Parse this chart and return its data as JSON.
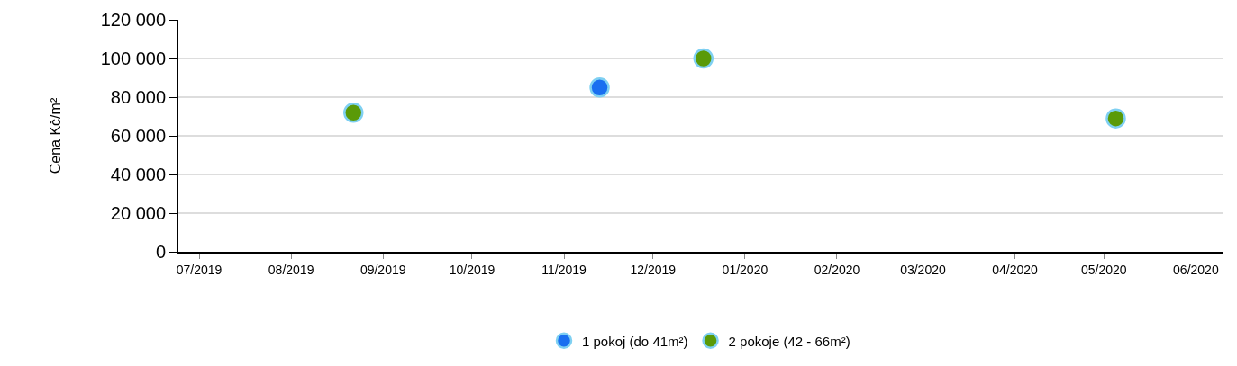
{
  "chart_data": {
    "type": "scatter",
    "ylabel": "Cena Kč/m²",
    "series": [
      {
        "name": "1 pokoj (do 41m²)",
        "color": "#1a6ff0",
        "x": [
          "2019-11-13"
        ],
        "values": [
          85000
        ]
      },
      {
        "name": "2 pokoje (42 - 66m²)",
        "color": "#5a9a08",
        "x": [
          "2019-08-22",
          "2019-12-18",
          "2020-05-05"
        ],
        "values": [
          72000,
          100000,
          69000
        ]
      }
    ],
    "xlim": [
      "2019-06-24",
      "2020-06-10"
    ],
    "xticks": [
      {
        "value": "2019-07-01",
        "label": "07/2019"
      },
      {
        "value": "2019-08-01",
        "label": "08/2019"
      },
      {
        "value": "2019-09-01",
        "label": "09/2019"
      },
      {
        "value": "2019-10-01",
        "label": "10/2019"
      },
      {
        "value": "2019-11-01",
        "label": "11/2019"
      },
      {
        "value": "2019-12-01",
        "label": "12/2019"
      },
      {
        "value": "2020-01-01",
        "label": "01/2020"
      },
      {
        "value": "2020-02-01",
        "label": "02/2020"
      },
      {
        "value": "2020-03-01",
        "label": "03/2020"
      },
      {
        "value": "2020-04-01",
        "label": "04/2020"
      },
      {
        "value": "2020-05-01",
        "label": "05/2020"
      },
      {
        "value": "2020-06-01",
        "label": "06/2020"
      }
    ],
    "ylim": [
      0,
      120000
    ],
    "yticks": [
      {
        "value": 0,
        "label": "0"
      },
      {
        "value": 20000,
        "label": "20 000"
      },
      {
        "value": 40000,
        "label": "40 000"
      },
      {
        "value": 60000,
        "label": "60 000"
      },
      {
        "value": 80000,
        "label": "80 000"
      },
      {
        "value": 100000,
        "label": "100 000"
      },
      {
        "value": 120000,
        "label": "120 000"
      }
    ],
    "grid": "y",
    "legend": "bottom",
    "marker": "circle"
  }
}
